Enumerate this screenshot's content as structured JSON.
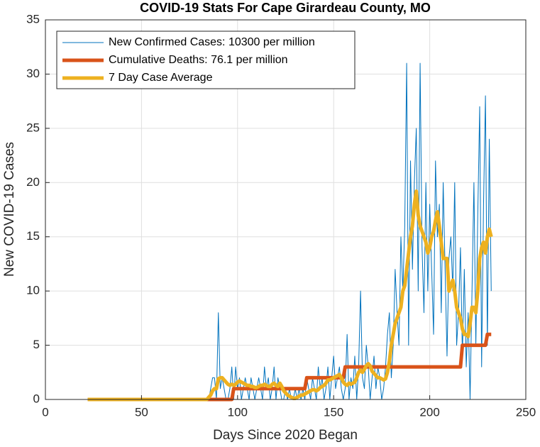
{
  "chart_data": {
    "type": "line",
    "title": "COVID-19 Stats For Cape Girardeau County, MO",
    "xlabel": "Days Since 2020 Began",
    "ylabel": "New COVID-19 Cases",
    "xlim": [
      0,
      250
    ],
    "xticks": [
      0,
      50,
      100,
      150,
      200,
      250
    ],
    "ylim": [
      0,
      35
    ],
    "yticks": [
      0,
      5,
      10,
      15,
      20,
      25,
      30,
      35
    ],
    "grid": true,
    "legend": "upper left",
    "x": [
      22,
      23,
      24,
      25,
      26,
      27,
      28,
      29,
      30,
      31,
      32,
      33,
      34,
      35,
      36,
      37,
      38,
      39,
      40,
      41,
      42,
      43,
      44,
      45,
      46,
      47,
      48,
      49,
      50,
      51,
      52,
      53,
      54,
      55,
      56,
      57,
      58,
      59,
      60,
      61,
      62,
      63,
      64,
      65,
      66,
      67,
      68,
      69,
      70,
      71,
      72,
      73,
      74,
      75,
      76,
      77,
      78,
      79,
      80,
      81,
      82,
      83,
      84,
      85,
      86,
      87,
      88,
      89,
      90,
      91,
      92,
      93,
      94,
      95,
      96,
      97,
      98,
      99,
      100,
      101,
      102,
      103,
      104,
      105,
      106,
      107,
      108,
      109,
      110,
      111,
      112,
      113,
      114,
      115,
      116,
      117,
      118,
      119,
      120,
      121,
      122,
      123,
      124,
      125,
      126,
      127,
      128,
      129,
      130,
      131,
      132,
      133,
      134,
      135,
      136,
      137,
      138,
      139,
      140,
      141,
      142,
      143,
      144,
      145,
      146,
      147,
      148,
      149,
      150,
      151,
      152,
      153,
      154,
      155,
      156,
      157,
      158,
      159,
      160,
      161,
      162,
      163,
      164,
      165,
      166,
      167,
      168,
      169,
      170,
      171,
      172,
      173,
      174,
      175,
      176,
      177,
      178,
      179,
      180,
      181,
      182,
      183,
      184,
      185,
      186,
      187,
      188,
      189,
      190,
      191,
      192,
      193,
      194,
      195,
      196,
      197,
      198,
      199,
      200,
      201,
      202,
      203,
      204,
      205,
      206,
      207,
      208,
      209,
      210,
      211,
      212,
      213,
      214,
      215,
      216,
      217,
      218,
      219,
      220,
      221,
      222,
      223,
      224,
      225,
      226,
      227,
      228,
      229,
      230,
      231,
      232
    ],
    "series": [
      {
        "name": "New Confirmed Cases: 10300 per million",
        "color": "#0072BD",
        "width": 1,
        "values": [
          0,
          0,
          0,
          0,
          0,
          0,
          0,
          0,
          0,
          0,
          0,
          0,
          0,
          0,
          0,
          0,
          0,
          0,
          0,
          0,
          0,
          0,
          0,
          0,
          0,
          0,
          0,
          0,
          0,
          0,
          0,
          0,
          0,
          0,
          0,
          0,
          0,
          0,
          0,
          0,
          0,
          0,
          0,
          0,
          0,
          0,
          0,
          0,
          0,
          0,
          0,
          0,
          0,
          0,
          0,
          0,
          0,
          0,
          0,
          0,
          0,
          0,
          0,
          0,
          1,
          2,
          2,
          0,
          8,
          1,
          2,
          1,
          0,
          0,
          1,
          3,
          0,
          3,
          1,
          2,
          0,
          1,
          2,
          1,
          0,
          2,
          1,
          0,
          1,
          2,
          1,
          0,
          3,
          1,
          2,
          0,
          1,
          3,
          0,
          2,
          1,
          0,
          0,
          1,
          0,
          1,
          0,
          0,
          1,
          0,
          1,
          0,
          1,
          0,
          2,
          1,
          0,
          2,
          1,
          0,
          3,
          1,
          2,
          0,
          1,
          3,
          0,
          2,
          4,
          1,
          2,
          3,
          1,
          0,
          1,
          6,
          0,
          2,
          1,
          4,
          0,
          3,
          10,
          2,
          1,
          5,
          3,
          0,
          2,
          4,
          1,
          3,
          2,
          0,
          1,
          3,
          6,
          8,
          2,
          5,
          12,
          8,
          5,
          15,
          10,
          16,
          31,
          5,
          22,
          12,
          20,
          25,
          10,
          31,
          14,
          8,
          20,
          10,
          18,
          12,
          6,
          22,
          15,
          18,
          8,
          20,
          12,
          4,
          13,
          15,
          10,
          20,
          5,
          8,
          14,
          4,
          12,
          3,
          8,
          0,
          10,
          20,
          5,
          17,
          27,
          3,
          18,
          28,
          5,
          24,
          10
        ]
      },
      {
        "name": "Cumulative Deaths: 76.1 per million",
        "color": "#D95319",
        "width": 5,
        "values": [
          0,
          0,
          0,
          0,
          0,
          0,
          0,
          0,
          0,
          0,
          0,
          0,
          0,
          0,
          0,
          0,
          0,
          0,
          0,
          0,
          0,
          0,
          0,
          0,
          0,
          0,
          0,
          0,
          0,
          0,
          0,
          0,
          0,
          0,
          0,
          0,
          0,
          0,
          0,
          0,
          0,
          0,
          0,
          0,
          0,
          0,
          0,
          0,
          0,
          0,
          0,
          0,
          0,
          0,
          0,
          0,
          0,
          0,
          0,
          0,
          0,
          0,
          0,
          0,
          0,
          0,
          0,
          0,
          0,
          0,
          0,
          0,
          0,
          0,
          0,
          0,
          1,
          1,
          1,
          1,
          1,
          1,
          1,
          1,
          1,
          1,
          1,
          1,
          1,
          1,
          1,
          1,
          1,
          1,
          1,
          1,
          1,
          1,
          1,
          1,
          1,
          1,
          1,
          1,
          1,
          1,
          1,
          1,
          1,
          1,
          1,
          1,
          1,
          1,
          2,
          2,
          2,
          2,
          2,
          2,
          2,
          2,
          2,
          2,
          2,
          2,
          2,
          2,
          2,
          2,
          2,
          2,
          2,
          2,
          3,
          3,
          3,
          3,
          3,
          3,
          3,
          3,
          3,
          3,
          3,
          3,
          3,
          3,
          3,
          3,
          3,
          3,
          3,
          3,
          3,
          3,
          3,
          3,
          3,
          3,
          3,
          3,
          3,
          3,
          3,
          3,
          3,
          3,
          3,
          3,
          3,
          3,
          3,
          3,
          3,
          3,
          3,
          3,
          3,
          3,
          3,
          3,
          3,
          3,
          3,
          3,
          3,
          3,
          3,
          3,
          3,
          3,
          3,
          3,
          3,
          5,
          5,
          5,
          5,
          5,
          5,
          5,
          5,
          5,
          5,
          5,
          5,
          5,
          6,
          6,
          6
        ]
      },
      {
        "name": "7 Day Case Average",
        "color": "#EDB120",
        "width": 5,
        "values": [
          0,
          0,
          0,
          0,
          0,
          0,
          0,
          0,
          0,
          0,
          0,
          0,
          0,
          0,
          0,
          0,
          0,
          0,
          0,
          0,
          0,
          0,
          0,
          0,
          0,
          0,
          0,
          0,
          0,
          0,
          0,
          0,
          0,
          0,
          0,
          0,
          0,
          0,
          0,
          0,
          0,
          0,
          0,
          0,
          0,
          0,
          0,
          0,
          0,
          0,
          0,
          0,
          0,
          0,
          0,
          0,
          0,
          0,
          0,
          0,
          0,
          0,
          0,
          0.2,
          0.4,
          0.8,
          1,
          1,
          1.9,
          2,
          2,
          1.8,
          1.6,
          1.4,
          1.3,
          1.4,
          1.3,
          1.4,
          1.6,
          1.7,
          1.6,
          1.5,
          1.4,
          1.3,
          1.3,
          1.2,
          1.2,
          1.1,
          1.1,
          1.2,
          1.3,
          1.3,
          1.4,
          1.3,
          1.2,
          1.2,
          1.4,
          1.5,
          1.3,
          1.2,
          1.5,
          1.2,
          0.8,
          0.6,
          0.4,
          0.3,
          0.2,
          0.1,
          0.1,
          0.2,
          0.3,
          0.4,
          0.4,
          0.5,
          0.6,
          0.7,
          0.8,
          0.9,
          0.9,
          0.8,
          0.9,
          1.1,
          1.2,
          1.3,
          1.5,
          1.8,
          1.8,
          1.9,
          2,
          2.1,
          2.2,
          2.3,
          2,
          1.6,
          1.4,
          1.3,
          1.5,
          1.4,
          1.5,
          1.6,
          2,
          2.5,
          2.7,
          2.5,
          2.8,
          3.1,
          3.3,
          3.1,
          2.6,
          2.4,
          2.2,
          2,
          2,
          1.9,
          1.8,
          1.9,
          2.5,
          3.5,
          5,
          6,
          7,
          7.5,
          8,
          8.5,
          10,
          10.5,
          12,
          13.5,
          15,
          16,
          18,
          19.2,
          17,
          16,
          15.5,
          15,
          14.5,
          13.5,
          14,
          15,
          15.5,
          16.5,
          17.3,
          16,
          14.5,
          13,
          13,
          13,
          10,
          10.5,
          11,
          10,
          8.5,
          8,
          7.5,
          6.5,
          6,
          6,
          5.8,
          7,
          8.5,
          8.5,
          8,
          10,
          13,
          14,
          14.5,
          13.5,
          15,
          15.7,
          15
        ]
      }
    ]
  }
}
